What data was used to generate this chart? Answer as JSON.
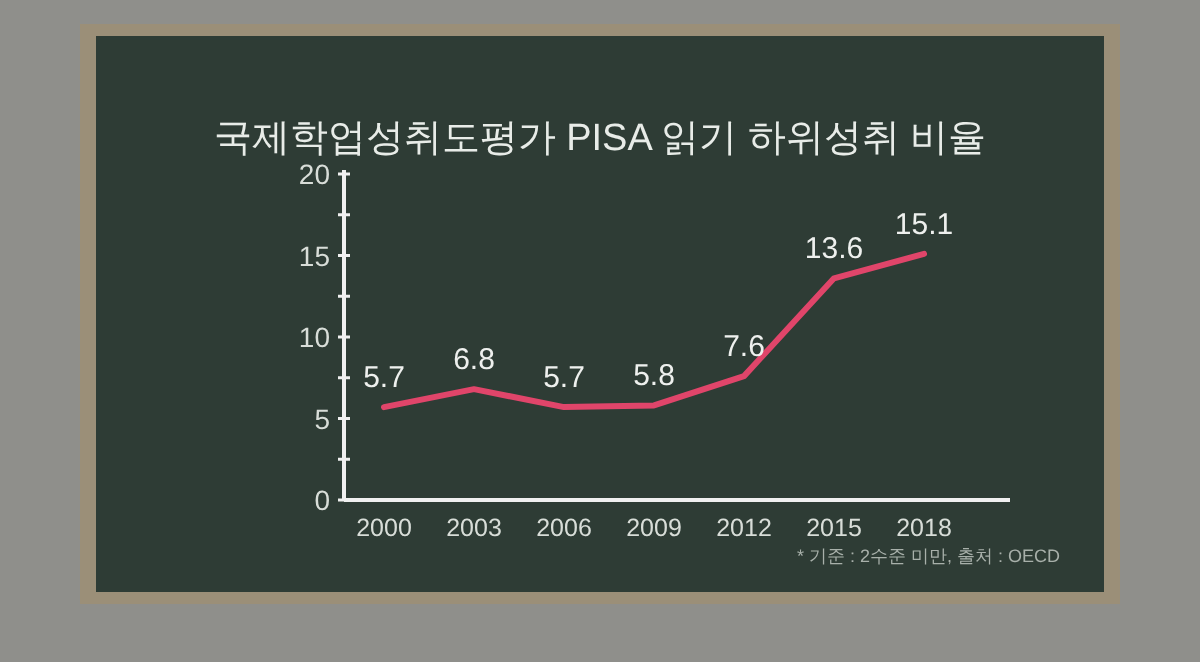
{
  "chart_data": {
    "type": "line",
    "title": "국제학업성취도평가 PISA 읽기 하위성취 비율",
    "categories": [
      "2000",
      "2003",
      "2006",
      "2009",
      "2012",
      "2015",
      "2018"
    ],
    "series": [
      {
        "color": "#e0456a",
        "values": [
          5.7,
          6.8,
          5.7,
          5.8,
          7.6,
          13.6,
          15.1
        ]
      }
    ],
    "ylim": [
      0,
      20
    ],
    "yticks": [
      0,
      {
        "value": 2.5,
        "label": null
      },
      5,
      {
        "value": 7.5,
        "label": null
      },
      10,
      {
        "value": 12.5,
        "label": null
      },
      15,
      {
        "value": 17.5,
        "label": null
      },
      20
    ],
    "data_labels": true,
    "line_style": "solid",
    "annotations": [
      "* 기준 : 2수준 미만, 출처 : OECD"
    ]
  }
}
